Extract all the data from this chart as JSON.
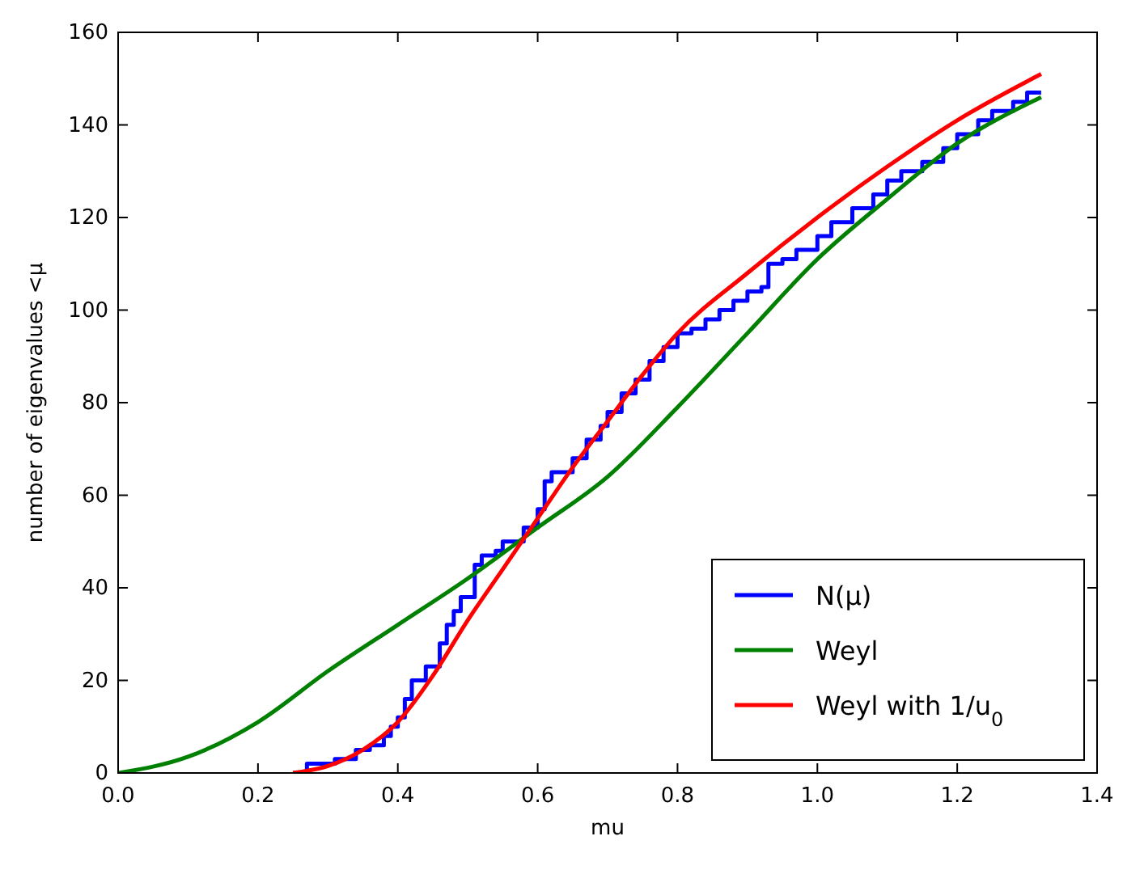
{
  "chart_data": {
    "type": "line",
    "xlabel": "mu",
    "ylabel": "number of eigenvalues <μ",
    "xlim": [
      0,
      1.4
    ],
    "ylim": [
      0,
      160
    ],
    "xticks": [
      {
        "value": 0,
        "label": "0.0"
      },
      {
        "value": 0.2,
        "label": "0.2"
      },
      {
        "value": 0.4,
        "label": "0.4"
      },
      {
        "value": 0.6,
        "label": "0.6"
      },
      {
        "value": 0.8,
        "label": "0.8"
      },
      {
        "value": 1,
        "label": "1.0"
      },
      {
        "value": 1.2,
        "label": "1.2"
      },
      {
        "value": 1.4,
        "label": "1.4"
      }
    ],
    "yticks": [
      0,
      20,
      40,
      60,
      80,
      100,
      120,
      140,
      160
    ],
    "grid": false,
    "legend": "bottom right",
    "line_style": "solid",
    "series": [
      {
        "name": "N(μ)",
        "color": "#0000ff",
        "type": "step",
        "x": [
          0.25,
          0.27,
          0.3,
          0.31,
          0.33,
          0.34,
          0.36,
          0.38,
          0.39,
          0.4,
          0.41,
          0.42,
          0.44,
          0.46,
          0.47,
          0.48,
          0.49,
          0.5,
          0.51,
          0.52,
          0.54,
          0.55,
          0.57,
          0.58,
          0.6,
          0.61,
          0.62,
          0.63,
          0.65,
          0.67,
          0.69,
          0.7,
          0.72,
          0.74,
          0.76,
          0.78,
          0.8,
          0.82,
          0.84,
          0.86,
          0.88,
          0.9,
          0.92,
          0.93,
          0.95,
          0.97,
          1.0,
          1.02,
          1.05,
          1.08,
          1.1,
          1.12,
          1.15,
          1.18,
          1.2,
          1.23,
          1.25,
          1.28,
          1.3,
          1.32
        ],
        "values": [
          0,
          2,
          2,
          3,
          3,
          5,
          6,
          8,
          10,
          12,
          16,
          20,
          23,
          28,
          32,
          35,
          38,
          38,
          45,
          47,
          48,
          50,
          50,
          53,
          57,
          63,
          65,
          65,
          68,
          72,
          75,
          78,
          82,
          85,
          89,
          92,
          95,
          96,
          98,
          100,
          102,
          104,
          105,
          110,
          111,
          113,
          116,
          119,
          122,
          125,
          128,
          130,
          132,
          135,
          138,
          141,
          143,
          145,
          147,
          147
        ]
      },
      {
        "name": "Weyl",
        "color": "#008000",
        "x": [
          0,
          0.1,
          0.2,
          0.3,
          0.4,
          0.5,
          0.6,
          0.7,
          0.8,
          0.9,
          1.0,
          1.1,
          1.2,
          1.32
        ],
        "values": [
          0,
          3.5,
          11,
          22,
          32,
          42,
          53,
          64,
          79,
          95,
          111,
          124,
          136,
          146
        ]
      },
      {
        "name": "Weyl with 1/u$_{0}$",
        "color": "#ff0000",
        "x": [
          0.25,
          0.3,
          0.35,
          0.4,
          0.45,
          0.5,
          0.55,
          0.6,
          0.65,
          0.7,
          0.75,
          0.8,
          0.9,
          1.0,
          1.1,
          1.2,
          1.32
        ],
        "values": [
          0,
          1.5,
          5,
          11,
          21,
          33,
          44,
          55,
          66,
          76,
          86,
          95,
          108,
          120,
          131,
          141,
          151
        ]
      }
    ]
  }
}
